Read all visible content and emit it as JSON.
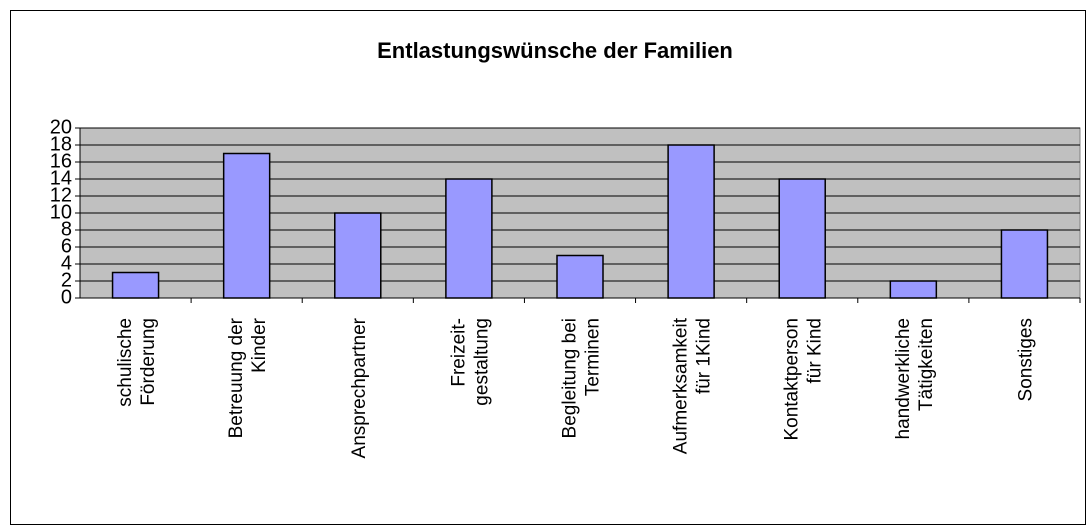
{
  "chart_data": {
    "type": "bar",
    "title": "Entlastungswünsche der Familien",
    "categories": [
      "schulische\nFörderung",
      "Betreuung der\nKinder",
      "Ansprechpartner",
      "Freizeit-\ngestaltung",
      "Begleitung bei\nTerminen",
      "Aufmerksamkeit\nfür 1Kind",
      "Kontaktperson\nfür Kind",
      "handwerkliche\nTätigkeiten",
      "Sonstiges"
    ],
    "values": [
      3,
      17,
      10,
      14,
      5,
      18,
      14,
      2,
      8
    ],
    "color": "#9999ff",
    "ylim": [
      0,
      20
    ],
    "yticks": [
      0,
      2,
      4,
      6,
      8,
      10,
      12,
      14,
      16,
      18,
      20
    ],
    "grid": true
  }
}
